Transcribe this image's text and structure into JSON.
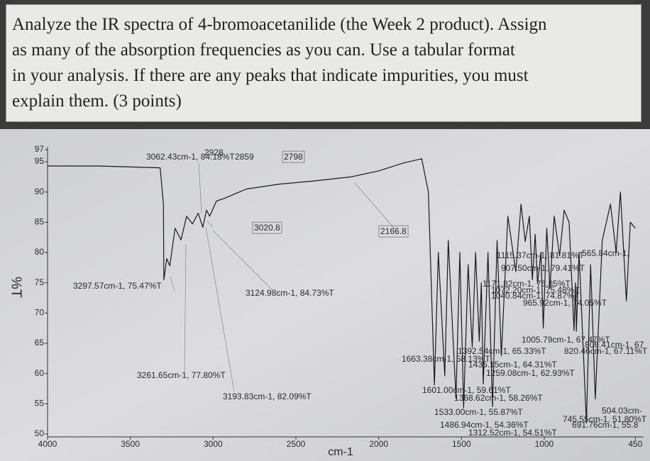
{
  "question": {
    "lines": [
      "Analyze the IR spectra of 4-bromoacetanilide (the Week 2 product). Assign",
      "as many of the absorption frequencies as you can. Use a tabular format",
      "in your analysis. If there are any peaks that indicate impurities, you must",
      "explain them. (3 points)"
    ]
  },
  "chart_data": {
    "type": "line",
    "ylabel": "%T",
    "xlabel": "cm-1",
    "xlim": [
      4000,
      400
    ],
    "ylim": [
      50,
      97
    ],
    "xticks": [
      4000,
      3500,
      3000,
      2500,
      2000,
      1500,
      1000,
      450
    ],
    "yticks": [
      50,
      55,
      60,
      65,
      70,
      75,
      80,
      85,
      90,
      95,
      97
    ],
    "x": [
      4000,
      3700,
      3320,
      3300,
      3297.57,
      3280,
      3261.65,
      3230,
      3193.83,
      3160,
      3124.98,
      3090,
      3062.43,
      3040,
      3020.8,
      2980,
      2928,
      2859,
      2798,
      2600,
      2400,
      2166.8,
      2000,
      1850,
      1740,
      1700,
      1663.38,
      1640,
      1601.0,
      1580,
      1533.0,
      1510,
      1486.94,
      1460,
      1435.15,
      1415,
      1392.54,
      1380,
      1368.62,
      1340,
      1312.52,
      1285,
      1259.08,
      1220,
      1171.82,
      1140,
      1115.37,
      1090,
      1072.2,
      1055,
      1040.84,
      1020,
      1005.79,
      985,
      965.92,
      940,
      907.5,
      880,
      850,
      820.46,
      812,
      806.41,
      790,
      745.55,
      720,
      691.76,
      650,
      600,
      565.84,
      540,
      504.03,
      480,
      450
    ],
    "series": [
      {
        "color": "#1a1a1a",
        "values": [
          94.3,
          94.3,
          94.0,
          88,
          75.47,
          79,
          77.8,
          84,
          82.09,
          86,
          84.73,
          86.5,
          84.18,
          87,
          86,
          88.5,
          89,
          89.8,
          90.5,
          91.3,
          91.8,
          92.5,
          93.5,
          94.8,
          95.5,
          90,
          58.13,
          80,
          59.61,
          82,
          55.87,
          80,
          54.36,
          78,
          64.31,
          80,
          65.33,
          75,
          58.26,
          80,
          54.51,
          82,
          62.93,
          86,
          76.85,
          88,
          81.81,
          86,
          75.48,
          83,
          74.87,
          80,
          67.47,
          84,
          74.05,
          86,
          79.41,
          87,
          85,
          67.11,
          75,
          67,
          80,
          51.8,
          78,
          55.8,
          82,
          88,
          80,
          90,
          72,
          85,
          84
        ]
      }
    ],
    "annotations": [
      "3062.43cm-1, 84.18%T",
      "2928",
      "2859",
      "2798",
      "3020.8",
      "2166.8",
      "3297.57cm-1, 75.47%T",
      "3124.98cm-1, 84.73%T",
      "3261.65cm-1, 77.80%T",
      "3193.83cm-1, 82.09%T",
      "1663.38cm-1, 58.13%T",
      "1392.54cm-1, 65.33%T",
      "820.46cm-1, 67.11%T",
      "1435.15cm-1, 64.31%T",
      "1259.08cm-1, 62.93%T",
      "1005.79cm-1, 67.47%T",
      "806.41cm-1, 67",
      "1601.00cm-1, 59.61%T",
      "1368.62cm-1, 58.26%T",
      "1533.00cm-1, 55.87%T",
      "1486.94cm-1, 54.36%T",
      "1312.52cm-1, 54.51%T",
      "504.03cm-",
      "745.55cm-1, 51.80%T",
      "691.76cm-1, 55.8",
      "1115.37cm-1, 81.81%T",
      "565.84cm-1,",
      "907.50cm-1, 79.41%T",
      "1171.82cm-1, 76.85%T",
      "1072.20cm-1, 75.48%T",
      "1040.84cm-1, 74.87%T",
      "965.92cm-1, 74.05%T"
    ]
  }
}
